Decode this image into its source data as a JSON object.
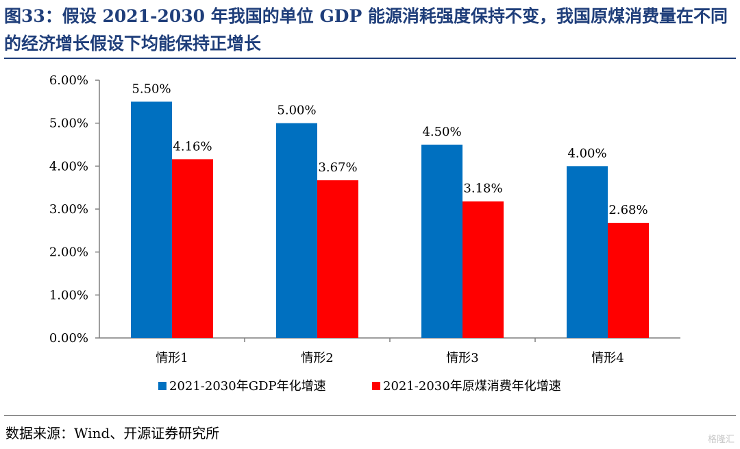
{
  "title": "图33：假设 2021-2030 年我国的单位 GDP 能源消耗强度保持不变，我国原煤消费量在不同的经济增长假设下均能保持正增长",
  "source": "数据来源：Wind、开源证券研究所",
  "watermark": "格隆汇",
  "colors": {
    "title": "#1f3e7a",
    "gdp_series": "#0070c0",
    "coal_series": "#ff0000"
  },
  "chart_data": {
    "type": "bar",
    "categories": [
      "情形1",
      "情形2",
      "情形3",
      "情形4"
    ],
    "series": [
      {
        "name": "2021-2030年GDP年化增速",
        "values": [
          5.5,
          5.0,
          4.5,
          4.0
        ],
        "labels": [
          "5.50%",
          "5.00%",
          "4.50%",
          "4.00%"
        ],
        "color": "#0070c0"
      },
      {
        "name": "2021-2030年原煤消费年化增速",
        "values": [
          4.16,
          3.67,
          3.18,
          2.68
        ],
        "labels": [
          "4.16%",
          "3.67%",
          "3.18%",
          "2.68%"
        ],
        "color": "#ff0000"
      }
    ],
    "yticks": [
      "0.00%",
      "1.00%",
      "2.00%",
      "3.00%",
      "4.00%",
      "5.00%",
      "6.00%"
    ],
    "ylim": [
      0,
      6
    ],
    "xlabel": "",
    "ylabel": "",
    "grid": false,
    "legend_position": "bottom"
  }
}
